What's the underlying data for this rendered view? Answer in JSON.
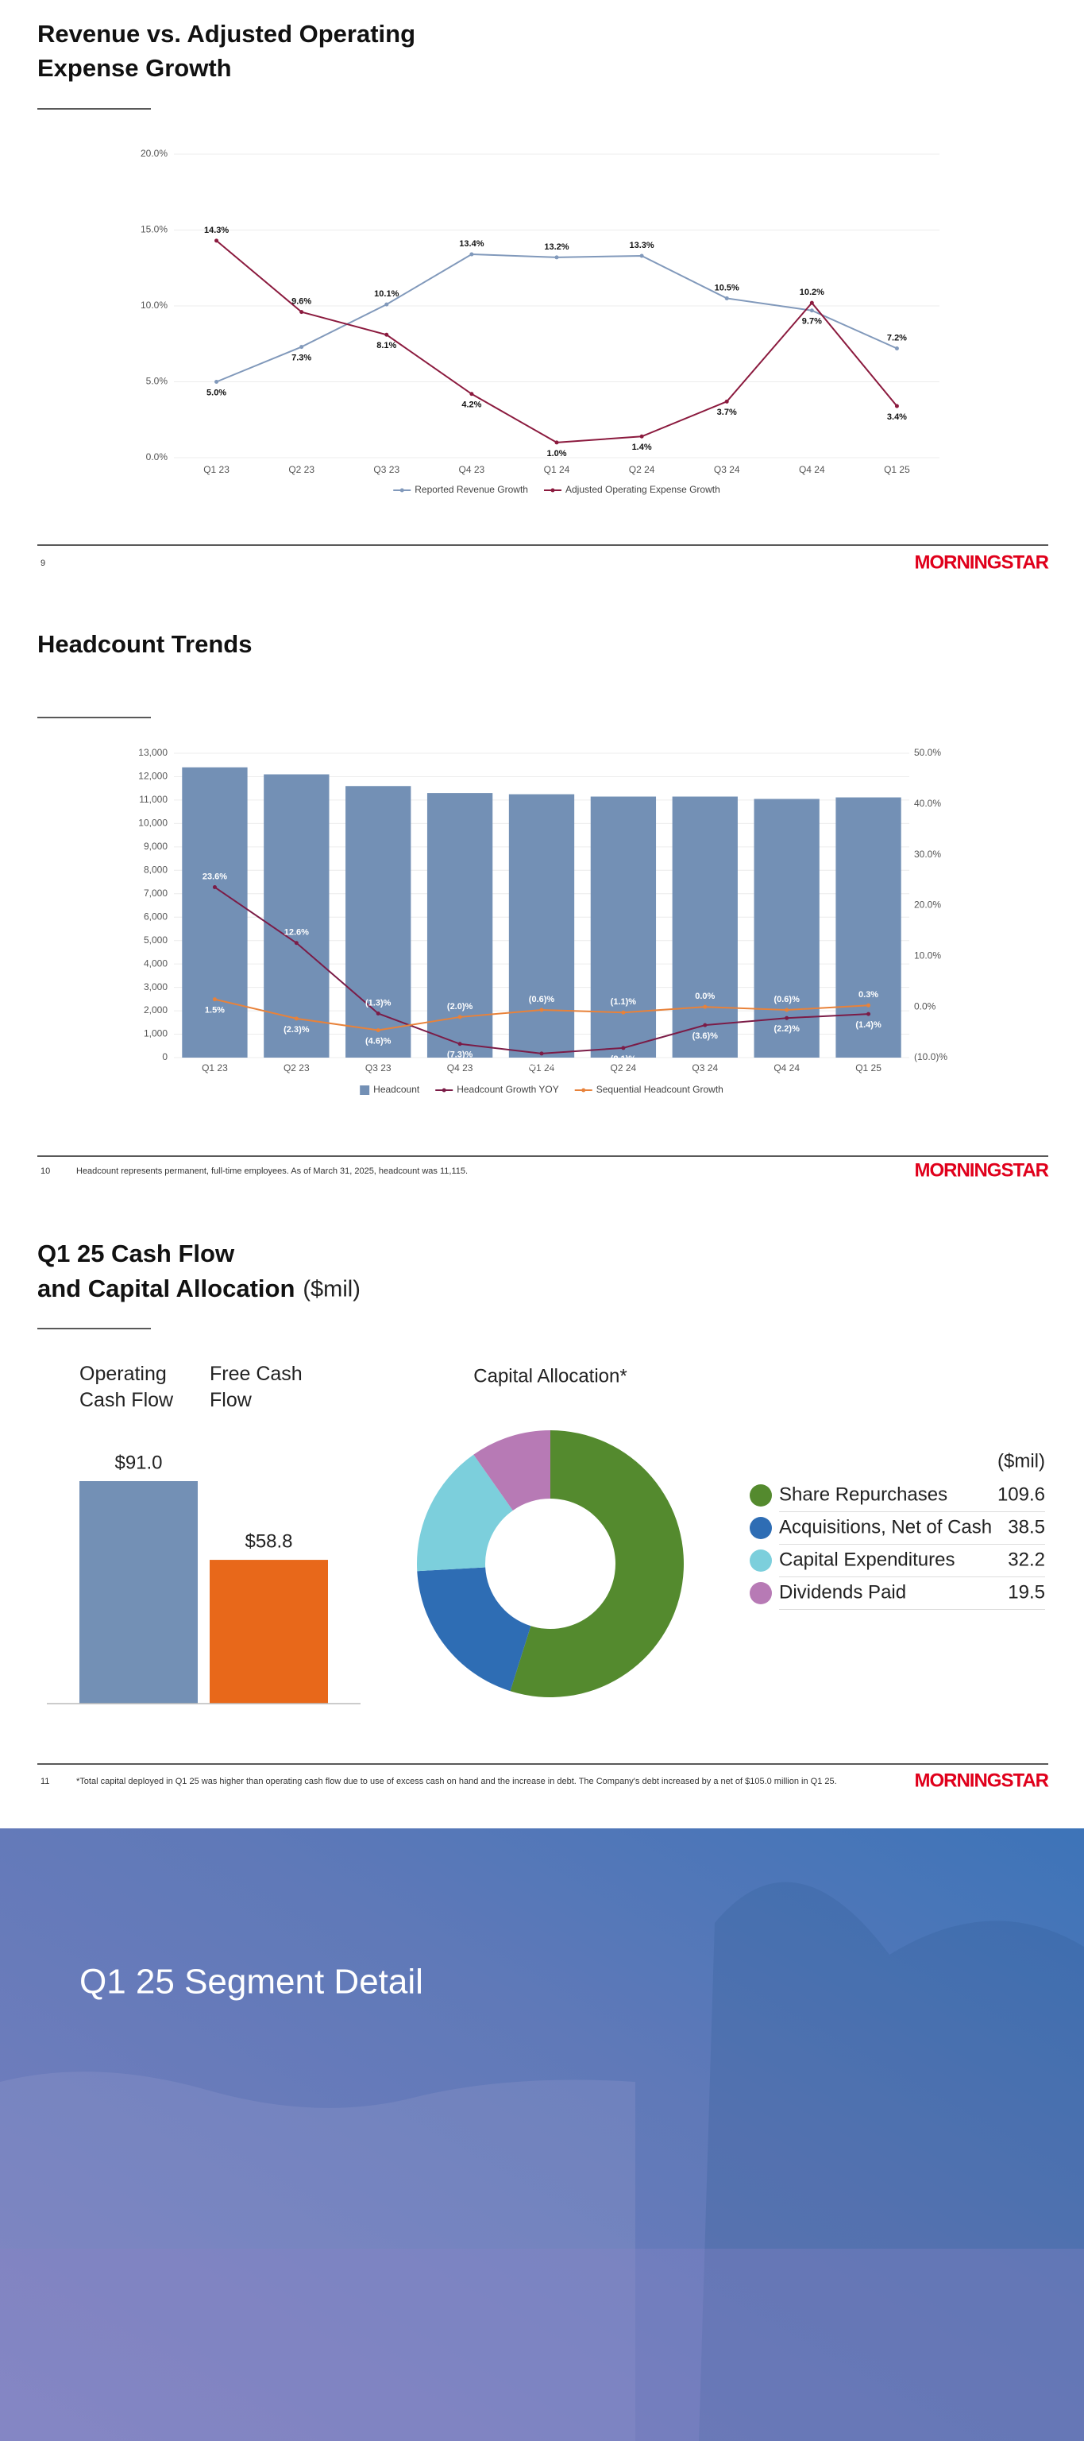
{
  "slides": [
    {
      "title": [
        "Revenue vs. Adjusted Operating",
        "Expense Growth"
      ],
      "page": "9",
      "logo": "MORNINGSTAR"
    },
    {
      "title": [
        "Headcount Trends"
      ],
      "page": "10",
      "footnote": "Headcount represents permanent, full-time employees. As of March 31, 2025, headcount was 11,115.",
      "logo": "MORNINGSTAR"
    },
    {
      "title": [
        "Q1 25 Cash Flow",
        "and Capital Allocation"
      ],
      "title_unit": "($mil)",
      "page": "11",
      "footnote": "*Total capital deployed in Q1 25 was higher than operating cash flow due to use of excess cash on hand and the increase in debt. The Company's debt increased by a net of $105.0 million in Q1 25.",
      "logo": "MORNINGSTAR"
    },
    {
      "title": [
        "Q1 25 Segment Detail"
      ]
    }
  ],
  "chart_data": [
    {
      "type": "line",
      "categories": [
        "Q1 23",
        "Q2 23",
        "Q3 23",
        "Q4 23",
        "Q1 24",
        "Q2 24",
        "Q3 24",
        "Q4 24",
        "Q1 25"
      ],
      "series": [
        {
          "name": "Reported Revenue Growth",
          "color": "#8199bb",
          "values": [
            5.0,
            7.3,
            10.1,
            13.4,
            13.2,
            13.3,
            10.5,
            9.7,
            7.2
          ],
          "value_labels": [
            "5.0%",
            "7.3%",
            "10.1%",
            "13.4%",
            "13.2%",
            "13.3%",
            "10.5%",
            "9.7%",
            "7.2%"
          ]
        },
        {
          "name": "Adjusted Operating Expense Growth",
          "color": "#8b1a3e",
          "values": [
            14.3,
            9.6,
            8.1,
            4.2,
            1.0,
            1.4,
            3.7,
            10.2,
            3.4
          ],
          "value_labels": [
            "14.3%",
            "9.6%",
            "8.1%",
            "4.2%",
            "1.0%",
            "1.4%",
            "3.7%",
            "10.2%",
            "3.4%"
          ]
        }
      ],
      "ylim": [
        0,
        20
      ],
      "yticks": [
        {
          "value": 0,
          "label": "0.0%"
        },
        {
          "value": 5,
          "label": "5.0%"
        },
        {
          "value": 10,
          "label": "10.0%"
        },
        {
          "value": 15,
          "label": "15.0%"
        },
        {
          "value": 20,
          "label": "20.0%"
        }
      ],
      "grid": true,
      "legend": "bottom"
    },
    {
      "type": "bar",
      "categories": [
        "Q1 23",
        "Q2 23",
        "Q3 23",
        "Q4 23",
        "Q1 24",
        "Q2 24",
        "Q3 24",
        "Q4 24",
        "Q1 25"
      ],
      "series": [
        {
          "name": "Headcount",
          "type": "bar",
          "color": "#7390b5",
          "values": [
            12400,
            12100,
            11600,
            11300,
            11250,
            11150,
            11150,
            11050,
            11115
          ]
        },
        {
          "name": "Headcount Growth YOY",
          "type": "line",
          "axis": "y2",
          "color": "#7b1c47",
          "values": [
            23.6,
            12.6,
            -1.3,
            -7.3,
            -9.2,
            -8.1,
            -3.6,
            -2.2,
            -1.4
          ],
          "value_labels": [
            "23.6%",
            "12.6%",
            "(1.3)%",
            "(7.3)%",
            "(9.2)%",
            "(8.1)%",
            "(3.6)%",
            "(2.2)%",
            "(1.4)%"
          ]
        },
        {
          "name": "Sequential Headcount Growth",
          "type": "line",
          "axis": "y2",
          "color": "#e8823a",
          "values": [
            1.5,
            -2.3,
            -4.6,
            -2.0,
            -0.6,
            -1.1,
            0.0,
            -0.6,
            0.3
          ],
          "value_labels": [
            "1.5%",
            "(2.3)%",
            "(4.6)%",
            "(2.0)%",
            "(0.6)%",
            "(1.1)%",
            "0.0%",
            "(0.6)%",
            "0.3%"
          ]
        }
      ],
      "ylim": [
        0,
        13000
      ],
      "yticks": [
        0,
        {
          "value": 1000,
          "label": "1,000"
        },
        {
          "value": 2000,
          "label": "2,000"
        },
        {
          "value": 3000,
          "label": "3,000"
        },
        {
          "value": 4000,
          "label": "4,000"
        },
        {
          "value": 5000,
          "label": "5,000"
        },
        {
          "value": 6000,
          "label": "6,000"
        },
        {
          "value": 7000,
          "label": "7,000"
        },
        {
          "value": 8000,
          "label": "8,000"
        },
        {
          "value": 9000,
          "label": "9,000"
        },
        {
          "value": 10000,
          "label": "10,000"
        },
        {
          "value": 11000,
          "label": "11,000"
        },
        {
          "value": 12000,
          "label": "12,000"
        },
        {
          "value": 13000,
          "label": "13,000"
        }
      ],
      "y2lim": [
        -10,
        50
      ],
      "y2ticks": [
        {
          "value": -10,
          "label": "(10.0)%"
        },
        {
          "value": 0,
          "label": "0.0%"
        },
        {
          "value": 10,
          "label": "10.0%"
        },
        {
          "value": 20,
          "label": "20.0%"
        },
        {
          "value": 30,
          "label": "30.0%"
        },
        {
          "value": 40,
          "label": "40.0%"
        },
        {
          "value": 50,
          "label": "50.0%"
        }
      ],
      "grid": true,
      "legend": "bottom"
    },
    {
      "type": "bar",
      "categories": [
        "Operating Cash Flow",
        "Free Cash Flow"
      ],
      "values": [
        91.0,
        58.8
      ],
      "value_labels": [
        "$91.0",
        "$58.8"
      ],
      "colors": [
        "#7390b5",
        "#e8681a"
      ]
    },
    {
      "type": "pie",
      "donut": true,
      "title": "Capital Allocation*",
      "unit": "($mil)",
      "categories": [
        "Share Repurchases",
        "Acquisitions, Net of Cash",
        "Capital Expenditures",
        "Dividends Paid"
      ],
      "values": [
        109.6,
        38.5,
        32.2,
        19.5
      ],
      "colors": [
        "#548a2e",
        "#2e6db4",
        "#7ccfdc",
        "#b77ab5"
      ],
      "legend": "right"
    }
  ]
}
